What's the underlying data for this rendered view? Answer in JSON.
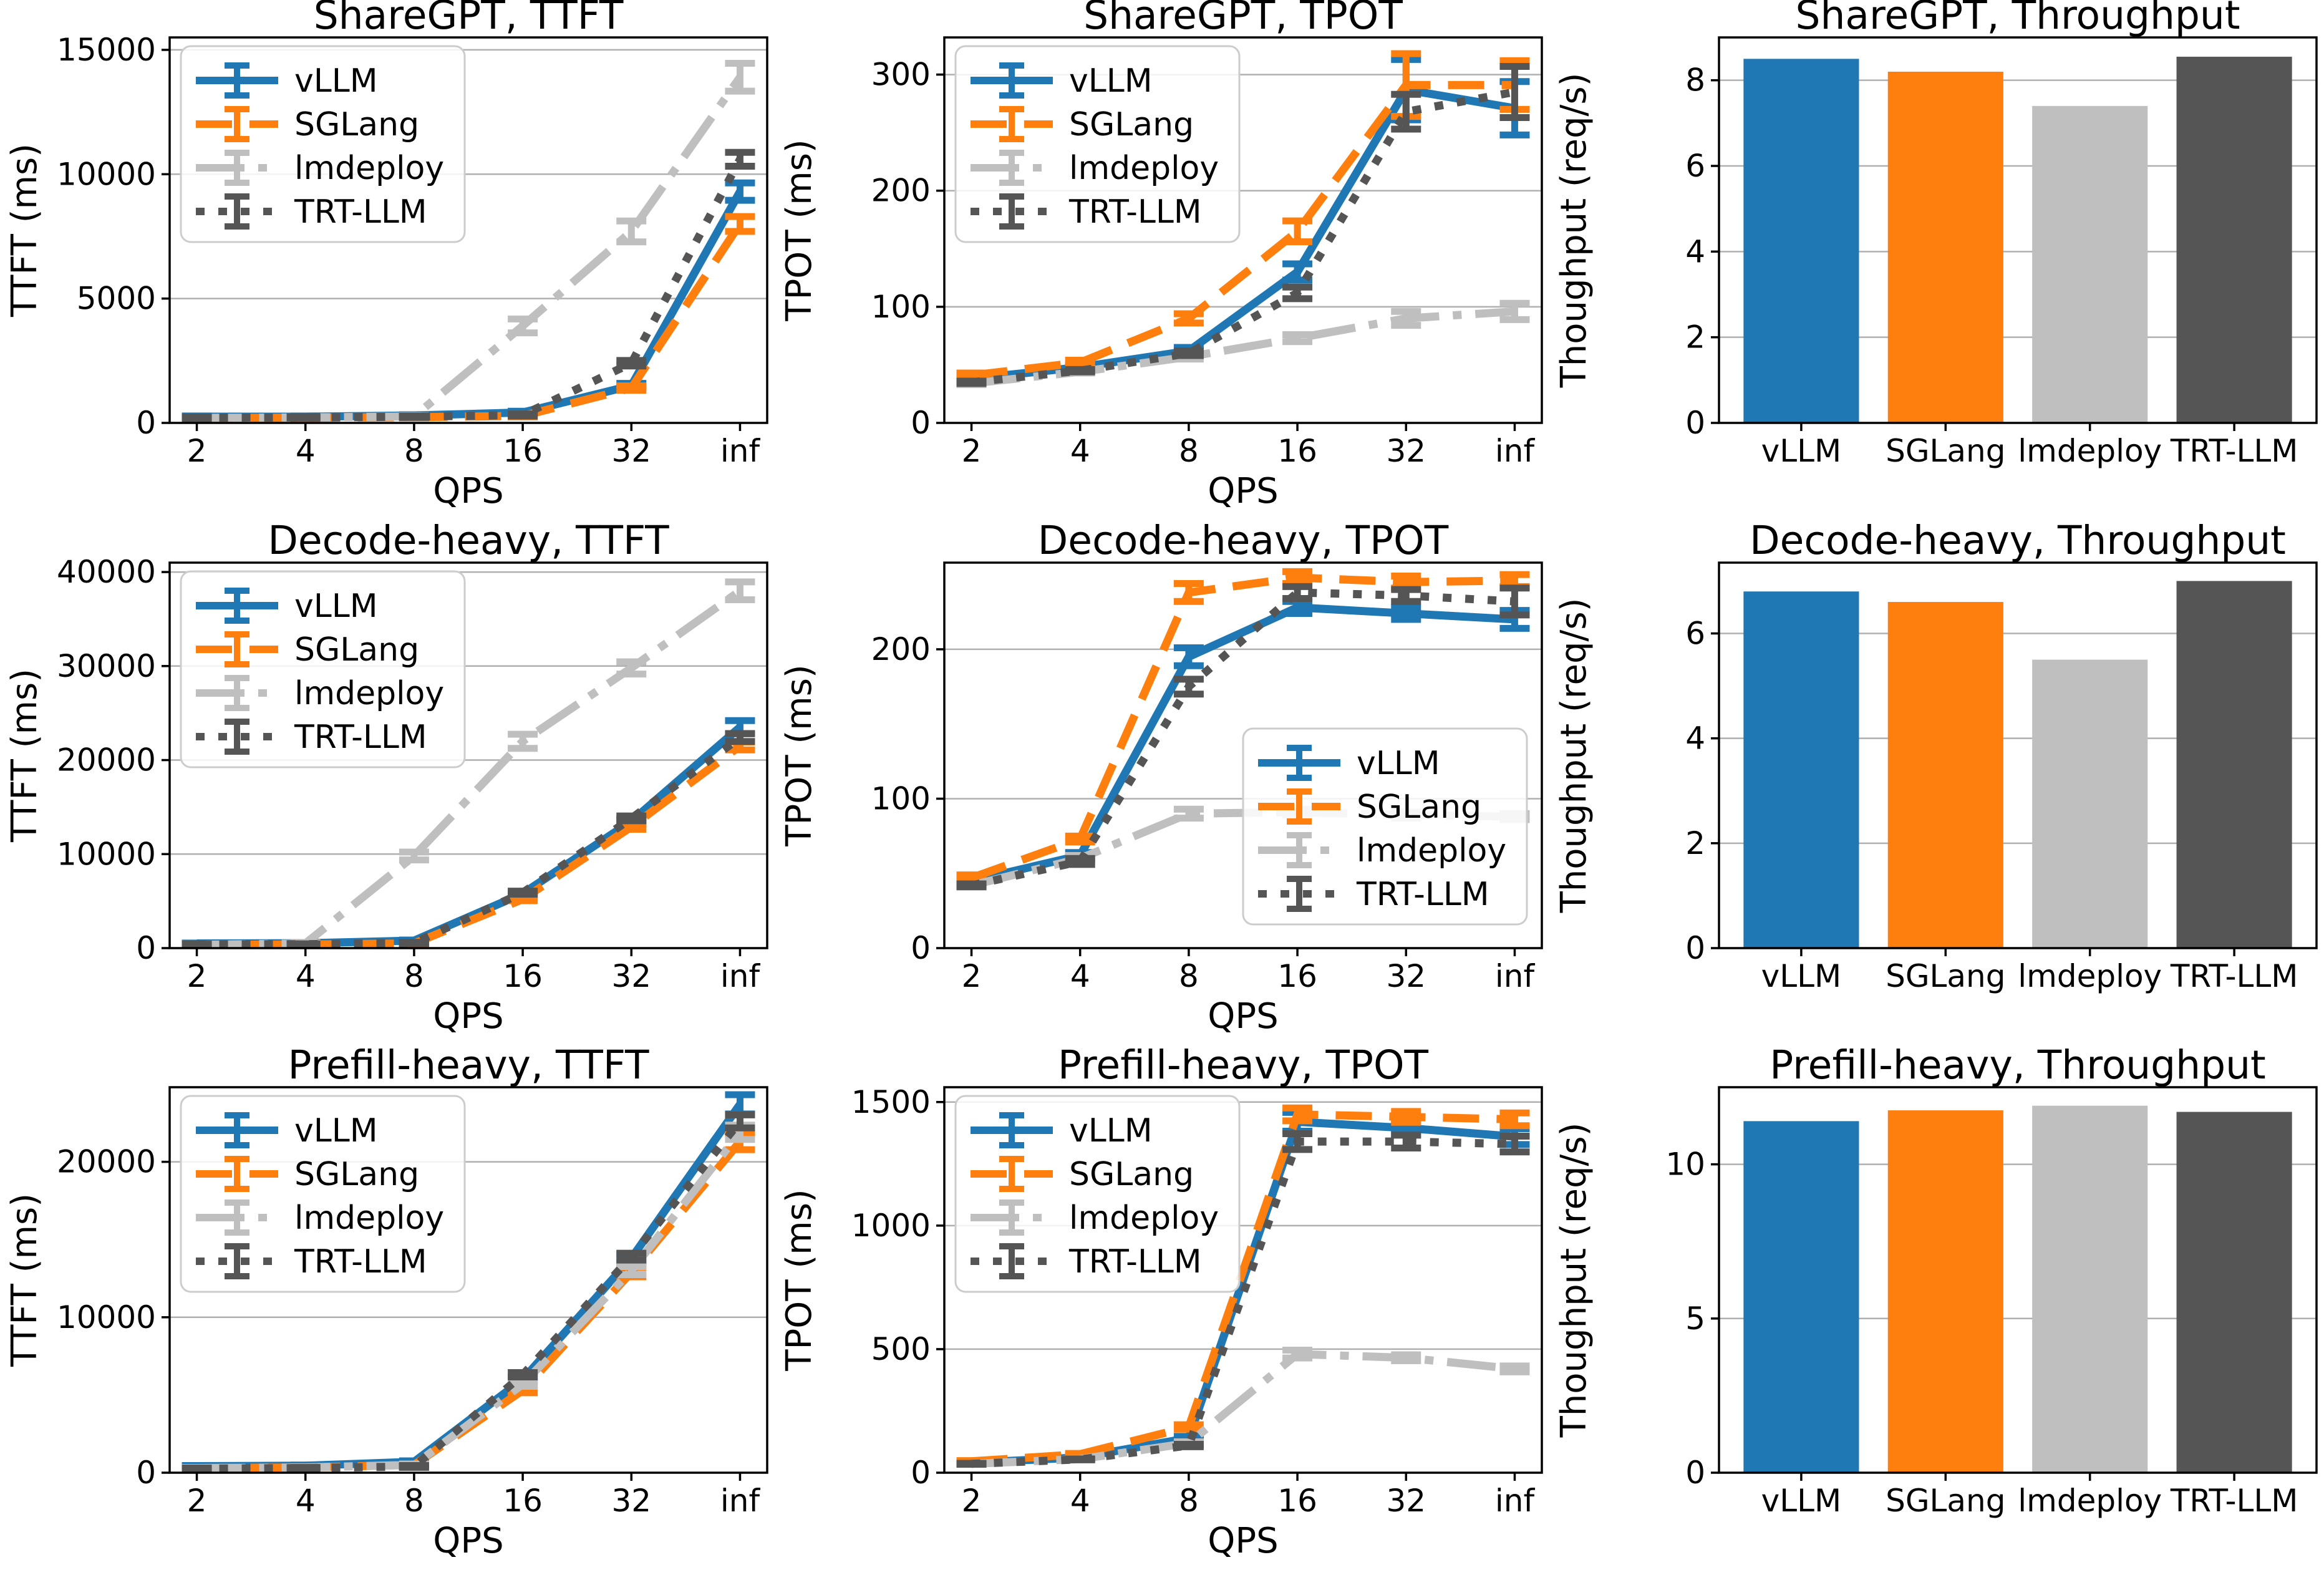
{
  "figure": {
    "background": "#ffffff",
    "frameworks": [
      "vLLM",
      "SGLang",
      "lmdeploy",
      "TRT-LLM"
    ],
    "colors": {
      "vLLM": "#1f77b4",
      "SGLang": "#ff7f0e",
      "lmdeploy": "#bfbfbf",
      "TRT-LLM": "#555555"
    },
    "linestyles": {
      "vLLM": "solid",
      "SGLang": "dashed",
      "lmdeploy": "dashdot",
      "TRT-LLM": "dotted"
    },
    "grid_color": "#b0b0b0",
    "x_label": "QPS",
    "x_ticklabels": [
      "2",
      "4",
      "8",
      "16",
      "32",
      "inf"
    ]
  },
  "chart_data": [
    {
      "type": "line",
      "title": "ShareGPT, TTFT",
      "xlabel": "QPS",
      "ylabel": "TTFT (ms)",
      "x_ticklabels": [
        "2",
        "4",
        "8",
        "16",
        "32",
        "inf"
      ],
      "yticks": [
        0,
        5000,
        10000,
        15000
      ],
      "ylim": [
        0,
        15500
      ],
      "legend_loc": "upper-left",
      "series": [
        {
          "name": "vLLM",
          "values": [
            250,
            250,
            300,
            420,
            1500,
            9300
          ],
          "err": [
            30,
            30,
            30,
            50,
            90,
            350
          ]
        },
        {
          "name": "SGLang",
          "values": [
            200,
            210,
            230,
            280,
            1400,
            8000
          ],
          "err": [
            30,
            30,
            30,
            40,
            90,
            300
          ]
        },
        {
          "name": "lmdeploy",
          "values": [
            200,
            220,
            260,
            3900,
            7700,
            13900
          ],
          "err": [
            30,
            30,
            40,
            280,
            420,
            560
          ]
        },
        {
          "name": "TRT-LLM",
          "values": [
            210,
            220,
            250,
            320,
            2400,
            10600
          ],
          "err": [
            30,
            30,
            30,
            40,
            110,
            280
          ]
        }
      ]
    },
    {
      "type": "line",
      "title": "ShareGPT, TPOT",
      "xlabel": "QPS",
      "ylabel": "TPOT (ms)",
      "x_ticklabels": [
        "2",
        "4",
        "8",
        "16",
        "32",
        "inf"
      ],
      "yticks": [
        0,
        100,
        200,
        300
      ],
      "ylim": [
        0,
        332
      ],
      "legend_loc": "upper-left",
      "series": [
        {
          "name": "vLLM",
          "values": [
            38,
            48,
            62,
            130,
            287,
            271
          ],
          "err": [
            2,
            2,
            3,
            7,
            26,
            23
          ]
        },
        {
          "name": "SGLang",
          "values": [
            41,
            52,
            90,
            165,
            291,
            291
          ],
          "err": [
            2,
            2,
            4,
            9,
            27,
            21
          ]
        },
        {
          "name": "lmdeploy",
          "values": [
            34,
            44,
            57,
            73,
            90,
            96
          ],
          "err": [
            1,
            1,
            2,
            3,
            6,
            7
          ]
        },
        {
          "name": "TRT-LLM",
          "values": [
            35,
            45,
            60,
            112,
            268,
            285
          ],
          "err": [
            1,
            1,
            2,
            5,
            15,
            22
          ]
        }
      ]
    },
    {
      "type": "bar",
      "title": "ShareGPT, Throughput",
      "ylabel": "Thoughput (req/s)",
      "categories": [
        "vLLM",
        "SGLang",
        "lmdeploy",
        "TRT-LLM"
      ],
      "values": [
        8.5,
        8.2,
        7.4,
        8.55
      ],
      "yticks": [
        0,
        2,
        4,
        6,
        8
      ],
      "ylim": [
        0,
        9
      ]
    },
    {
      "type": "line",
      "title": "Decode-heavy, TTFT",
      "xlabel": "QPS",
      "ylabel": "TTFT (ms)",
      "x_ticklabels": [
        "2",
        "4",
        "8",
        "16",
        "32",
        "inf"
      ],
      "yticks": [
        0,
        10000,
        20000,
        30000,
        40000
      ],
      "ylim": [
        0,
        41000
      ],
      "legend_loc": "upper-left",
      "series": [
        {
          "name": "vLLM",
          "values": [
            500,
            520,
            800,
            5800,
            13500,
            23500
          ],
          "err": [
            40,
            40,
            60,
            160,
            260,
            700
          ]
        },
        {
          "name": "SGLang",
          "values": [
            350,
            380,
            500,
            5200,
            12900,
            21500
          ],
          "err": [
            40,
            40,
            60,
            160,
            260,
            420
          ]
        },
        {
          "name": "lmdeploy",
          "values": [
            350,
            500,
            9800,
            22000,
            29800,
            38000
          ],
          "err": [
            40,
            60,
            420,
            750,
            650,
            950
          ]
        },
        {
          "name": "TRT-LLM",
          "values": [
            380,
            420,
            550,
            5900,
            13800,
            22400
          ],
          "err": [
            40,
            40,
            60,
            160,
            260,
            420
          ]
        }
      ]
    },
    {
      "type": "line",
      "title": "Decode-heavy, TPOT",
      "xlabel": "QPS",
      "ylabel": "TPOT (ms)",
      "x_ticklabels": [
        "2",
        "4",
        "8",
        "16",
        "32",
        "inf"
      ],
      "yticks": [
        0,
        100,
        200
      ],
      "ylim": [
        0,
        258
      ],
      "legend_loc": "lower-right",
      "series": [
        {
          "name": "vLLM",
          "values": [
            45,
            62,
            195,
            228,
            224,
            220
          ],
          "err": [
            2,
            2,
            6,
            4,
            4,
            6
          ]
        },
        {
          "name": "SGLang",
          "values": [
            47,
            73,
            238,
            248,
            245,
            246
          ],
          "err": [
            2,
            2,
            6,
            4,
            4,
            4
          ]
        },
        {
          "name": "lmdeploy",
          "values": [
            42,
            60,
            90,
            91,
            89,
            88
          ],
          "err": [
            1,
            2,
            3,
            2,
            2,
            2
          ]
        },
        {
          "name": "TRT-LLM",
          "values": [
            42,
            58,
            175,
            238,
            236,
            232
          ],
          "err": [
            1,
            2,
            5,
            4,
            4,
            9
          ]
        }
      ]
    },
    {
      "type": "bar",
      "title": "Decode-heavy, Throughput",
      "ylabel": "Thoughput (req/s)",
      "categories": [
        "vLLM",
        "SGLang",
        "lmdeploy",
        "TRT-LLM"
      ],
      "values": [
        6.8,
        6.6,
        5.5,
        7.0
      ],
      "yticks": [
        0,
        2,
        4,
        6
      ],
      "ylim": [
        0,
        7.35
      ]
    },
    {
      "type": "line",
      "title": "Prefill-heavy, TTFT",
      "xlabel": "QPS",
      "ylabel": "TTFT (ms)",
      "x_ticklabels": [
        "2",
        "4",
        "8",
        "16",
        "32",
        "inf"
      ],
      "yticks": [
        0,
        10000,
        20000
      ],
      "ylim": [
        0,
        24800
      ],
      "legend_loc": "upper-left",
      "series": [
        {
          "name": "vLLM",
          "values": [
            420,
            450,
            700,
            6000,
            13800,
            23700
          ],
          "err": [
            40,
            40,
            60,
            140,
            260,
            620
          ]
        },
        {
          "name": "SGLang",
          "values": [
            300,
            340,
            500,
            5300,
            12900,
            21300
          ],
          "err": [
            40,
            40,
            60,
            160,
            300,
            520
          ]
        },
        {
          "name": "lmdeploy",
          "values": [
            300,
            340,
            500,
            5700,
            13000,
            21900
          ],
          "err": [
            40,
            40,
            60,
            140,
            260,
            460
          ]
        },
        {
          "name": "TRT-LLM",
          "values": [
            260,
            300,
            400,
            6300,
            13900,
            22600
          ],
          "err": [
            40,
            40,
            60,
            140,
            220,
            420
          ]
        }
      ]
    },
    {
      "type": "line",
      "title": "Prefill-heavy, TPOT",
      "xlabel": "QPS",
      "ylabel": "TPOT (ms)",
      "x_ticklabels": [
        "2",
        "4",
        "8",
        "16",
        "32",
        "inf"
      ],
      "yticks": [
        0,
        500,
        1000,
        1500
      ],
      "ylim": [
        0,
        1560
      ],
      "legend_loc": "upper-left",
      "series": [
        {
          "name": "vLLM",
          "values": [
            40,
            62,
            140,
            1420,
            1395,
            1360
          ],
          "err": [
            3,
            3,
            7,
            38,
            26,
            32
          ]
        },
        {
          "name": "SGLang",
          "values": [
            46,
            75,
            185,
            1450,
            1440,
            1430
          ],
          "err": [
            3,
            3,
            9,
            26,
            22,
            26
          ]
        },
        {
          "name": "lmdeploy",
          "values": [
            36,
            55,
            120,
            480,
            465,
            420
          ],
          "err": [
            2,
            2,
            5,
            16,
            12,
            12
          ]
        },
        {
          "name": "TRT-LLM",
          "values": [
            36,
            54,
            110,
            1340,
            1340,
            1330
          ],
          "err": [
            2,
            2,
            5,
            32,
            26,
            32
          ]
        }
      ]
    },
    {
      "type": "bar",
      "title": "Prefill-heavy, Throughput",
      "ylabel": "Thoughput (req/s)",
      "categories": [
        "vLLM",
        "SGLang",
        "lmdeploy",
        "TRT-LLM"
      ],
      "values": [
        11.4,
        11.75,
        11.9,
        11.7
      ],
      "yticks": [
        0,
        5,
        10
      ],
      "ylim": [
        0,
        12.5
      ]
    }
  ]
}
